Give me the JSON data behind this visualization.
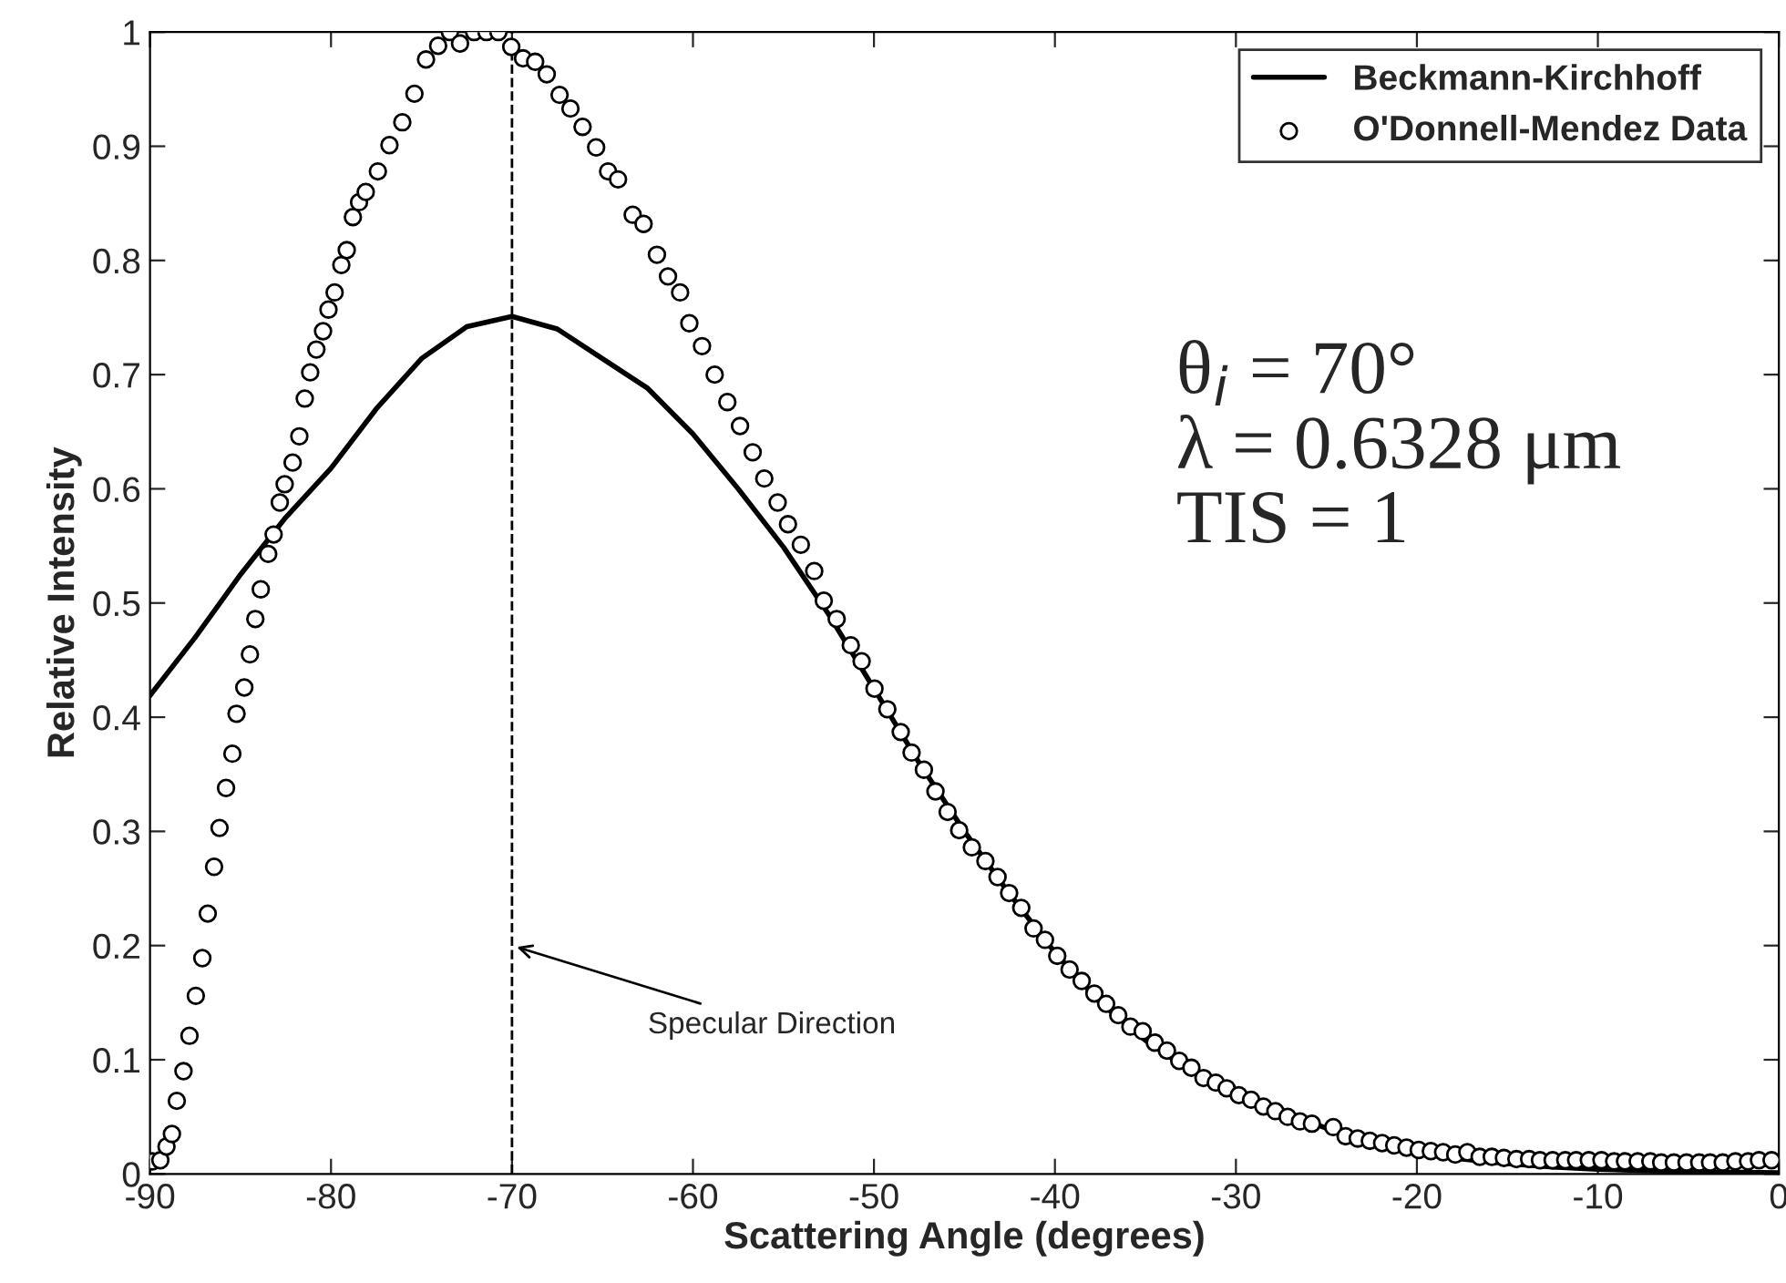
{
  "chart_data": {
    "type": "line",
    "xlabel": "Scattering Angle (degrees)",
    "ylabel": "Relative Intensity",
    "xlim": [
      -90,
      0
    ],
    "ylim": [
      0,
      1
    ],
    "xticks": [
      -90,
      -80,
      -70,
      -60,
      -50,
      -40,
      -30,
      -20,
      -10,
      0
    ],
    "yticks": [
      0,
      0.1,
      0.2,
      0.3,
      0.4,
      0.5,
      0.6,
      0.7,
      0.8,
      0.9,
      1
    ],
    "grid": false,
    "legend": "top right",
    "series": [
      {
        "name": "Beckmann-Kirchhoff",
        "color": "#000000",
        "line_style": "solid",
        "marker": "none",
        "x": [
          -90,
          -87.5,
          -85,
          -82.5,
          -80,
          -77.5,
          -75,
          -72.5,
          -70,
          -67.5,
          -65,
          -62.5,
          -60,
          -57.5,
          -55,
          -52.5,
          -50,
          -47.5,
          -45,
          -42.5,
          -40,
          -37.5,
          -35,
          -32.5,
          -30,
          -27.5,
          -25,
          -22.5,
          -20,
          -17.5,
          -15,
          -12.5,
          -10,
          -5,
          0
        ],
        "values": [
          0.419,
          0.47,
          0.525,
          0.575,
          0.618,
          0.67,
          0.714,
          0.742,
          0.751,
          0.74,
          0.714,
          0.688,
          0.648,
          0.6,
          0.549,
          0.49,
          0.425,
          0.36,
          0.3,
          0.245,
          0.194,
          0.15,
          0.117,
          0.09,
          0.072,
          0.055,
          0.04,
          0.028,
          0.019,
          0.013,
          0.009,
          0.006,
          0.004,
          0.002,
          0.001
        ]
      },
      {
        "name": "O'Donnell-Mendez Data",
        "type": "scatter",
        "color": "#000000",
        "marker": "circle",
        "x": [
          -89.87,
          -89.43,
          -89.09,
          -88.79,
          -88.52,
          -88.15,
          -87.82,
          -87.47,
          -87.11,
          -86.81,
          -86.46,
          -86.16,
          -85.8,
          -85.45,
          -85.22,
          -84.79,
          -84.48,
          -84.18,
          -83.88,
          -83.47,
          -83.17,
          -82.83,
          -82.56,
          -82.12,
          -81.75,
          -81.45,
          -81.15,
          -80.81,
          -80.44,
          -80.14,
          -79.8,
          -79.43,
          -79.13,
          -78.79,
          -78.45,
          -78.08,
          -77.41,
          -76.77,
          -76.06,
          -75.39,
          -74.75,
          -74.08,
          -73.43,
          -72.87,
          -72.09,
          -71.41,
          -70.75,
          -70.04,
          -69.39,
          -68.72,
          -68.08,
          -67.37,
          -66.77,
          -66.1,
          -65.35,
          -64.69,
          -64.14,
          -63.33,
          -62.73,
          -61.99,
          -61.38,
          -60.71,
          -60.2,
          -59.5,
          -58.8,
          -58.1,
          -57.4,
          -56.7,
          -56.06,
          -55.32,
          -54.75,
          -54.04,
          -53.3,
          -52.77,
          -52.06,
          -51.28,
          -50.68,
          -49.97,
          -49.26,
          -48.52,
          -47.92,
          -47.24,
          -46.6,
          -45.93,
          -45.29,
          -44.59,
          -43.84,
          -43.17,
          -42.53,
          -41.86,
          -41.18,
          -40.55,
          -39.87,
          -39.19,
          -38.52,
          -37.82,
          -37.17,
          -36.5,
          -35.83,
          -35.15,
          -34.48,
          -33.81,
          -33.13,
          -32.46,
          -31.79,
          -31.11,
          -30.51,
          -29.84,
          -29.16,
          -28.48,
          -27.82,
          -27.14,
          -26.46,
          -25.8,
          -24.62,
          -23.94,
          -23.27,
          -22.6,
          -21.92,
          -21.25,
          -20.57,
          -19.9,
          -19.23,
          -18.55,
          -17.88,
          -17.21,
          -16.53,
          -15.86,
          -15.19,
          -14.5,
          -13.8,
          -13.2,
          -12.5,
          -11.8,
          -11.2,
          -10.5,
          -9.8,
          -9.1,
          -8.5,
          -7.8,
          -7.1,
          -6.5,
          -5.8,
          -5.1,
          -4.4,
          -3.8,
          -3.1,
          -2.4,
          -1.7,
          -1.1,
          -0.4
        ],
        "values": [
          0.011,
          0.012,
          0.024,
          0.035,
          0.064,
          0.09,
          0.121,
          0.156,
          0.189,
          0.228,
          0.269,
          0.303,
          0.338,
          0.368,
          0.403,
          0.426,
          0.455,
          0.486,
          0.512,
          0.543,
          0.56,
          0.588,
          0.604,
          0.623,
          0.646,
          0.679,
          0.702,
          0.722,
          0.738,
          0.757,
          0.772,
          0.796,
          0.809,
          0.838,
          0.851,
          0.86,
          0.878,
          0.901,
          0.921,
          0.946,
          0.976,
          0.988,
          1.0,
          0.99,
          1.0,
          1.0,
          1.0,
          0.987,
          0.977,
          0.974,
          0.963,
          0.945,
          0.933,
          0.917,
          0.899,
          0.878,
          0.871,
          0.84,
          0.832,
          0.805,
          0.786,
          0.772,
          0.745,
          0.725,
          0.7,
          0.676,
          0.655,
          0.632,
          0.609,
          0.588,
          0.569,
          0.551,
          0.528,
          0.502,
          0.486,
          0.463,
          0.449,
          0.425,
          0.407,
          0.387,
          0.369,
          0.354,
          0.335,
          0.317,
          0.301,
          0.286,
          0.274,
          0.26,
          0.246,
          0.233,
          0.215,
          0.205,
          0.191,
          0.179,
          0.169,
          0.158,
          0.149,
          0.139,
          0.129,
          0.125,
          0.115,
          0.108,
          0.099,
          0.093,
          0.084,
          0.08,
          0.075,
          0.069,
          0.065,
          0.059,
          0.055,
          0.05,
          0.046,
          0.044,
          0.041,
          0.033,
          0.031,
          0.029,
          0.027,
          0.025,
          0.023,
          0.021,
          0.02,
          0.019,
          0.017,
          0.019,
          0.015,
          0.015,
          0.014,
          0.013,
          0.013,
          0.012,
          0.012,
          0.012,
          0.012,
          0.012,
          0.012,
          0.011,
          0.011,
          0.011,
          0.011,
          0.01,
          0.01,
          0.01,
          0.01,
          0.01,
          0.01,
          0.011,
          0.011,
          0.012,
          0.012
        ]
      }
    ],
    "ref_lines": [
      {
        "axis": "x",
        "value": -70,
        "color": "#000000",
        "line_style": "dashed"
      }
    ],
    "annotations": [
      "θ$_{i}$ = 70°\nλ = 0.6328 μm\nTIS = 1",
      {
        "text": "Specular Direction",
        "x": -70,
        "y": 0.2
      }
    ]
  }
}
